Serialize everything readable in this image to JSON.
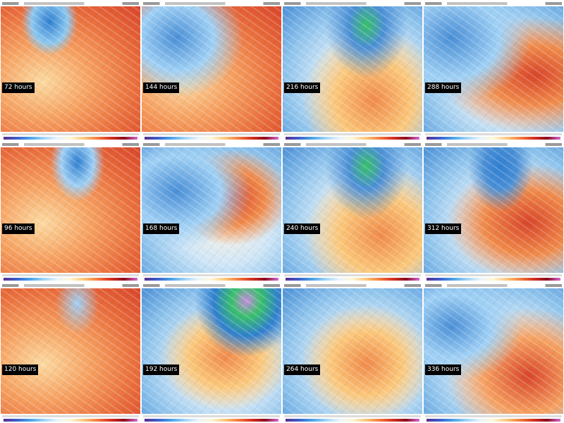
{
  "panels": [
    {
      "label": "72 hours"
    },
    {
      "label": "144 hours"
    },
    {
      "label": "216 hours"
    },
    {
      "label": "288 hours"
    },
    {
      "label": "96 hours"
    },
    {
      "label": "168 hours"
    },
    {
      "label": "240 hours"
    },
    {
      "label": "312 hours"
    },
    {
      "label": "120 hours"
    },
    {
      "label": "192 hours"
    },
    {
      "label": "264 hours"
    },
    {
      "label": "336 hours"
    }
  ]
}
